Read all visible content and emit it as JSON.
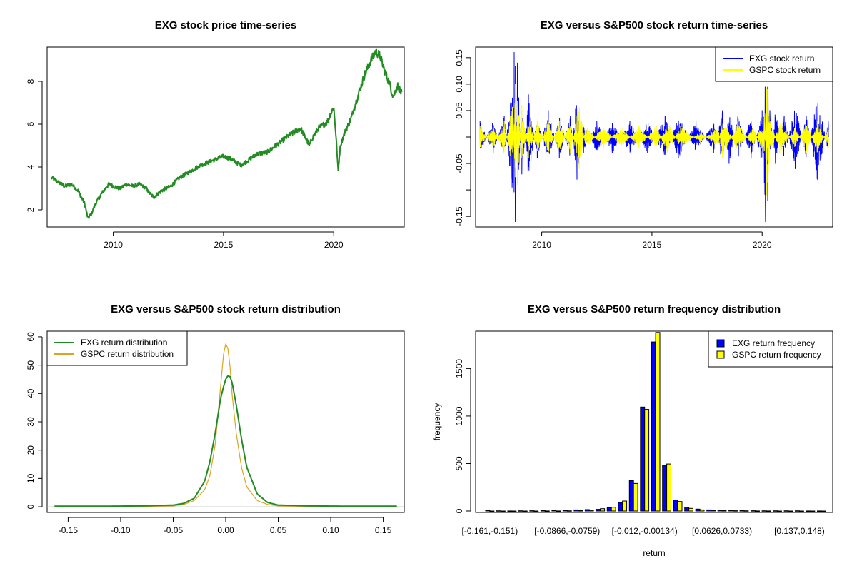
{
  "chart_data": [
    {
      "type": "line",
      "title": "EXG stock price time-series",
      "xlabel": "",
      "ylabel": "",
      "xlim": [
        2007.0,
        2023.2
      ],
      "ylim": [
        1.2,
        9.6
      ],
      "xticks": [
        2010,
        2015,
        2020
      ],
      "xtick_labels": [
        "2010",
        "2015",
        "2020"
      ],
      "yticks": [
        2,
        4,
        6,
        8
      ],
      "ytick_labels": [
        "2",
        "4",
        "6",
        "8"
      ],
      "color": "#228B22",
      "series": [
        {
          "name": "EXG",
          "x": [
            2007.2,
            2007.5,
            2007.8,
            2008.1,
            2008.4,
            2008.7,
            2008.85,
            2009.0,
            2009.2,
            2009.5,
            2009.8,
            2010.0,
            2010.3,
            2010.6,
            2010.9,
            2011.2,
            2011.5,
            2011.7,
            2011.85,
            2012.2,
            2012.6,
            2013.0,
            2013.5,
            2014.0,
            2014.5,
            2015.0,
            2015.3,
            2015.6,
            2015.8,
            2016.1,
            2016.5,
            2017.0,
            2017.5,
            2018.0,
            2018.5,
            2018.9,
            2019.0,
            2019.3,
            2019.7,
            2020.0,
            2020.1,
            2020.2,
            2020.3,
            2020.5,
            2020.8,
            2021.0,
            2021.4,
            2021.7,
            2021.9,
            2022.1,
            2022.3,
            2022.5,
            2022.7,
            2022.9,
            2023.1
          ],
          "values": [
            3.5,
            3.3,
            3.1,
            3.2,
            2.9,
            2.3,
            1.6,
            1.8,
            2.3,
            2.8,
            3.2,
            3.1,
            3.0,
            3.2,
            3.1,
            3.2,
            3.0,
            2.7,
            2.6,
            2.9,
            3.1,
            3.5,
            3.8,
            4.1,
            4.3,
            4.5,
            4.4,
            4.2,
            4.1,
            4.3,
            4.6,
            4.7,
            5.1,
            5.5,
            5.8,
            5.0,
            5.3,
            5.8,
            6.1,
            6.8,
            5.5,
            3.8,
            5.0,
            5.6,
            6.3,
            7.0,
            8.3,
            9.0,
            9.4,
            9.2,
            8.5,
            8.0,
            7.3,
            7.8,
            7.4
          ]
        }
      ]
    },
    {
      "type": "line",
      "title": "EXG versus S&P500 stock return time-series",
      "xlabel": "",
      "ylabel": "",
      "xlim": [
        2007.0,
        2023.2
      ],
      "ylim": [
        -0.17,
        0.17
      ],
      "xticks": [
        2010,
        2015,
        2020
      ],
      "xtick_labels": [
        "2010",
        "2015",
        "2020"
      ],
      "yticks": [
        -0.15,
        -0.1,
        -0.05,
        0.0,
        0.05,
        0.1,
        0.15
      ],
      "ytick_labels": [
        "-0.15",
        "",
        "-0.05",
        "",
        "0.05",
        "0.10",
        "0.15"
      ],
      "legend": {
        "position": "top-right",
        "entries": [
          "EXG stock return",
          "GSPC stock return"
        ],
        "colors": [
          "#0000FF",
          "#FFFF00"
        ]
      },
      "series": [
        {
          "name": "EXG stock return",
          "color": "#0000FF",
          "x": [
            2007.2,
            2007.8,
            2008.3,
            2008.7,
            2008.75,
            2008.8,
            2008.9,
            2009.1,
            2009.4,
            2009.8,
            2010.3,
            2010.8,
            2011.3,
            2011.6,
            2011.65,
            2011.9,
            2012.5,
            2013.2,
            2014.0,
            2014.8,
            2015.6,
            2016.2,
            2017.0,
            2017.8,
            2018.2,
            2018.5,
            2018.9,
            2019.5,
            2020.0,
            2020.15,
            2020.2,
            2020.25,
            2020.35,
            2020.6,
            2021.0,
            2021.5,
            2022.0,
            2022.5,
            2023.0
          ],
          "values": [
            0.03,
            -0.03,
            0.04,
            -0.12,
            0.16,
            -0.16,
            0.14,
            -0.07,
            0.08,
            -0.04,
            0.05,
            -0.04,
            0.04,
            -0.08,
            0.06,
            -0.03,
            0.03,
            -0.03,
            0.03,
            -0.03,
            0.04,
            -0.04,
            0.03,
            -0.03,
            0.05,
            -0.05,
            0.04,
            -0.04,
            0.05,
            -0.16,
            0.07,
            -0.12,
            0.05,
            -0.05,
            0.04,
            -0.06,
            0.04,
            -0.08,
            0.03
          ]
        },
        {
          "name": "GSPC stock return",
          "color": "#FFFF00",
          "x": [
            2007.2,
            2007.8,
            2008.3,
            2008.7,
            2008.8,
            2008.9,
            2009.1,
            2009.4,
            2009.8,
            2010.3,
            2010.8,
            2011.3,
            2011.6,
            2011.7,
            2012.0,
            2012.8,
            2013.6,
            2014.4,
            2015.2,
            2015.7,
            2016.3,
            2017.2,
            2018.0,
            2018.2,
            2018.9,
            2019.6,
            2020.1,
            2020.2,
            2020.25,
            2020.4,
            2020.8,
            2021.5,
            2022.0,
            2022.5,
            2023.0
          ],
          "values": [
            0.02,
            -0.02,
            0.03,
            -0.07,
            0.1,
            -0.09,
            0.06,
            -0.04,
            0.03,
            -0.03,
            0.03,
            -0.03,
            0.04,
            -0.06,
            0.02,
            -0.02,
            0.02,
            -0.02,
            0.02,
            -0.03,
            0.02,
            -0.01,
            0.02,
            -0.04,
            0.03,
            -0.02,
            0.04,
            -0.11,
            0.09,
            0.03,
            -0.03,
            0.02,
            -0.03,
            0.03,
            -0.02
          ]
        }
      ]
    },
    {
      "type": "line",
      "title": "EXG versus S&P500 stock return distribution",
      "xlabel": "",
      "ylabel": "",
      "xlim": [
        -0.17,
        0.17
      ],
      "ylim": [
        -2,
        62
      ],
      "xticks": [
        -0.15,
        -0.1,
        -0.05,
        0.0,
        0.05,
        0.1,
        0.15
      ],
      "xtick_labels": [
        "-0.15",
        "-0.10",
        "-0.05",
        "0.00",
        "0.05",
        "0.10",
        "0.15"
      ],
      "yticks": [
        0,
        10,
        20,
        30,
        40,
        50,
        60
      ],
      "ytick_labels": [
        "0",
        "10",
        "20",
        "30",
        "40",
        "50",
        "60"
      ],
      "legend": {
        "position": "top-left",
        "entries": [
          "EXG return distribution",
          "GSPC return distribution"
        ],
        "colors": [
          "#228B22",
          "#DAA520"
        ]
      },
      "series": [
        {
          "name": "EXG return distribution",
          "color": "#228B22",
          "x": [
            -0.163,
            -0.12,
            -0.08,
            -0.05,
            -0.04,
            -0.03,
            -0.02,
            -0.015,
            -0.01,
            -0.005,
            -0.002,
            0.0,
            0.002,
            0.004,
            0.006,
            0.01,
            0.015,
            0.02,
            0.03,
            0.04,
            0.05,
            0.08,
            0.12,
            0.163
          ],
          "values": [
            0.2,
            0.2,
            0.3,
            0.6,
            1.2,
            3.0,
            9.0,
            16.0,
            26.0,
            38.0,
            42.5,
            45.0,
            46.2,
            46.0,
            44.0,
            36.0,
            24.0,
            14.0,
            4.5,
            1.5,
            0.6,
            0.3,
            0.2,
            0.2
          ]
        },
        {
          "name": "GSPC return distribution",
          "color": "#DAA520",
          "x": [
            -0.163,
            -0.12,
            -0.08,
            -0.05,
            -0.04,
            -0.03,
            -0.02,
            -0.015,
            -0.01,
            -0.005,
            -0.002,
            0.0,
            0.002,
            0.004,
            0.006,
            0.01,
            0.015,
            0.02,
            0.03,
            0.04,
            0.05,
            0.08,
            0.12,
            0.163
          ],
          "values": [
            0.0,
            0.0,
            0.1,
            0.3,
            0.8,
            2.2,
            6.0,
            11.0,
            22.0,
            42.0,
            54.0,
            57.5,
            56.0,
            50.0,
            40.0,
            26.0,
            14.0,
            7.0,
            2.2,
            0.8,
            0.3,
            0.1,
            0.0,
            0.0
          ]
        }
      ]
    },
    {
      "type": "bar",
      "title": "EXG versus S&P500 return frequency distribution",
      "xlabel": "return",
      "ylabel": "frequency",
      "ylim": [
        0,
        1880
      ],
      "yticks": [
        0,
        500,
        1000,
        1500
      ],
      "ytick_labels": [
        "0",
        "500",
        "1000",
        "1500"
      ],
      "category_labels_shown": [
        "[-0.161,-0.151)",
        "[-0.0866,-0.0759)",
        "[-0.012,-0.00134)",
        "[0.0626,0.0733)",
        "[0.137,0.148)"
      ],
      "label_positions": [
        0,
        7,
        14,
        21,
        28
      ],
      "legend": {
        "position": "top-right",
        "entries": [
          "EXG return frequency",
          "GSPC return frequency"
        ],
        "colors": [
          "#0000FF",
          "#FFFF00"
        ]
      },
      "series": [
        {
          "name": "EXG return frequency",
          "color": "#0000FF",
          "values": [
            5,
            2,
            1,
            2,
            3,
            4,
            6,
            8,
            12,
            15,
            18,
            35,
            90,
            320,
            1095,
            1780,
            480,
            115,
            40,
            20,
            12,
            8,
            6,
            4,
            3,
            2,
            2,
            2,
            2,
            1,
            1
          ]
        },
        {
          "name": "GSPC return frequency",
          "color": "#FFFF00",
          "values": [
            0,
            0,
            0,
            0,
            0,
            1,
            1,
            2,
            4,
            8,
            25,
            40,
            105,
            290,
            1070,
            1880,
            495,
            100,
            28,
            12,
            6,
            4,
            3,
            2,
            1,
            1,
            0,
            0,
            0,
            0,
            0
          ]
        }
      ]
    }
  ]
}
